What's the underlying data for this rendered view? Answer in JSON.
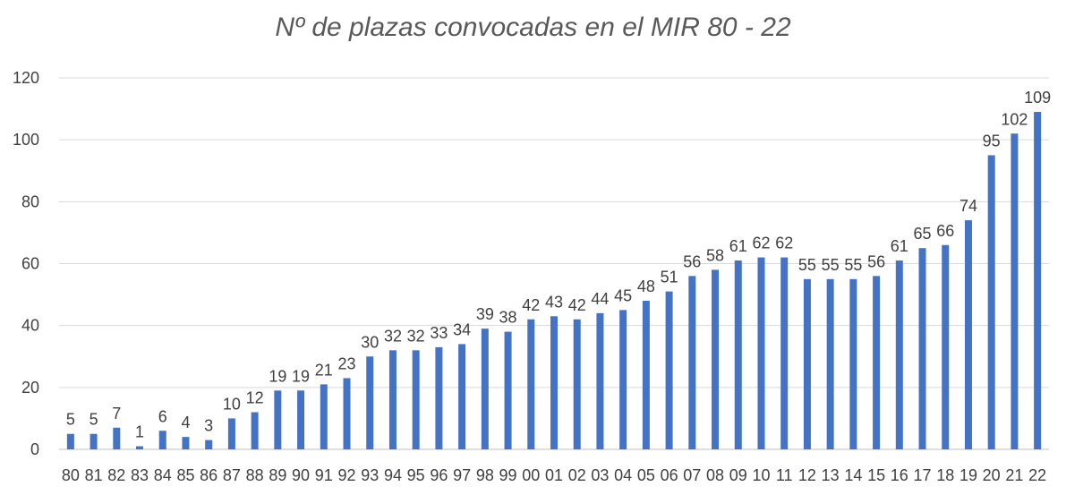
{
  "chart_data": {
    "type": "bar",
    "title": "Nº de plazas convocadas en el MIR 80 - 22",
    "xlabel": "",
    "ylabel": "",
    "ylim": [
      0,
      120
    ],
    "yticks": [
      0,
      20,
      40,
      60,
      80,
      100,
      120
    ],
    "grid": true,
    "legend": "none",
    "bar_color": "#4472c4",
    "categories": [
      "80",
      "81",
      "82",
      "83",
      "84",
      "85",
      "86",
      "87",
      "88",
      "89",
      "90",
      "91",
      "92",
      "93",
      "94",
      "95",
      "96",
      "97",
      "98",
      "99",
      "00",
      "01",
      "02",
      "03",
      "04",
      "05",
      "06",
      "07",
      "08",
      "09",
      "10",
      "11",
      "12",
      "13",
      "14",
      "15",
      "16",
      "17",
      "18",
      "19",
      "20",
      "21",
      "22"
    ],
    "values": [
      5,
      5,
      7,
      1,
      6,
      4,
      3,
      10,
      12,
      19,
      19,
      21,
      23,
      30,
      32,
      32,
      33,
      34,
      39,
      38,
      42,
      43,
      42,
      44,
      45,
      48,
      51,
      56,
      58,
      61,
      62,
      62,
      55,
      55,
      55,
      56,
      61,
      65,
      66,
      74,
      95,
      102,
      109
    ]
  }
}
